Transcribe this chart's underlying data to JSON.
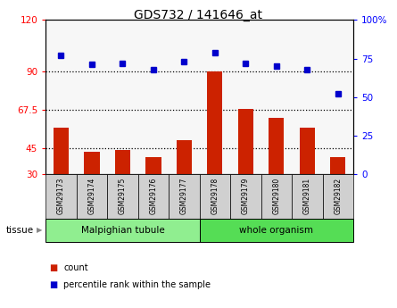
{
  "title": "GDS732 / 141646_at",
  "samples": [
    "GSM29173",
    "GSM29174",
    "GSM29175",
    "GSM29176",
    "GSM29177",
    "GSM29178",
    "GSM29179",
    "GSM29180",
    "GSM29181",
    "GSM29182"
  ],
  "counts": [
    57,
    43,
    44,
    40,
    50,
    90,
    68,
    63,
    57,
    40
  ],
  "percentiles": [
    77,
    71,
    72,
    68,
    73,
    79,
    72,
    70,
    68,
    52
  ],
  "tissue_groups": [
    {
      "label": "Malpighian tubule",
      "start": 0,
      "end": 5,
      "color": "#90EE90"
    },
    {
      "label": "whole organism",
      "start": 5,
      "end": 10,
      "color": "#55DD55"
    }
  ],
  "ylim_left": [
    30,
    120
  ],
  "ylim_right": [
    0,
    100
  ],
  "yticks_left": [
    30,
    45,
    67.5,
    90,
    120
  ],
  "ytick_labels_left": [
    "30",
    "45",
    "67.5",
    "90",
    "120"
  ],
  "yticks_right": [
    0,
    25,
    50,
    75,
    100
  ],
  "ytick_labels_right": [
    "0",
    "25",
    "50",
    "75",
    "100%"
  ],
  "hlines": [
    45,
    67.5,
    90
  ],
  "bar_color": "#CC2200",
  "dot_color": "#0000CC",
  "bar_width": 0.5,
  "tissue_label": "tissue",
  "legend_items": [
    {
      "label": "count",
      "color": "#CC2200"
    },
    {
      "label": "percentile rank within the sample",
      "color": "#0000CC"
    }
  ]
}
